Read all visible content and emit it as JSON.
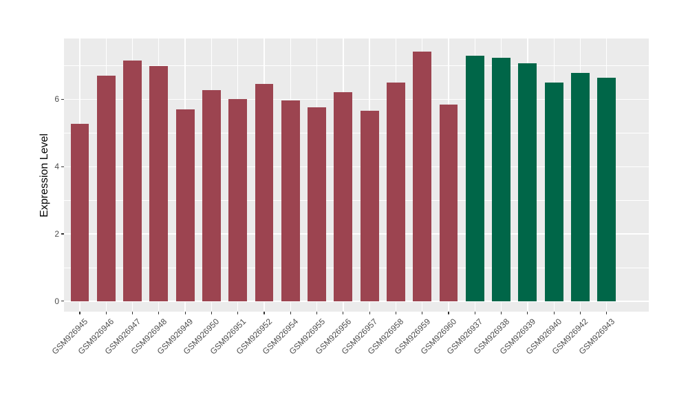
{
  "figure": {
    "background": "#FFFFFF",
    "panel_background": "#EBEBEB",
    "grid_color": "#FFFFFF",
    "tick_color": "#333333",
    "axis_text_color": "#4D4D4D",
    "axis_title_color": "#000000"
  },
  "chart_data": {
    "type": "bar",
    "title": "",
    "xlabel": "",
    "ylabel": "Expression Level",
    "categories": [
      "GSM926945",
      "GSM926946",
      "GSM926947",
      "GSM926948",
      "GSM926949",
      "GSM926950",
      "GSM926951",
      "GSM926952",
      "GSM926954",
      "GSM926955",
      "GSM926956",
      "GSM926957",
      "GSM926958",
      "GSM926959",
      "GSM926960",
      "GSM926937",
      "GSM926938",
      "GSM926939",
      "GSM926940",
      "GSM926942",
      "GSM926943"
    ],
    "values": [
      5.27,
      6.7,
      7.15,
      7.0,
      5.71,
      6.27,
      6.02,
      6.46,
      5.97,
      5.76,
      6.21,
      5.67,
      6.5,
      7.42,
      5.85,
      7.3,
      7.24,
      7.08,
      6.51,
      6.78,
      6.65
    ],
    "bar_colors": [
      "#9C4450",
      "#9C4450",
      "#9C4450",
      "#9C4450",
      "#9C4450",
      "#9C4450",
      "#9C4450",
      "#9C4450",
      "#9C4450",
      "#9C4450",
      "#9C4450",
      "#9C4450",
      "#9C4450",
      "#9C4450",
      "#9C4450",
      "#006648",
      "#006648",
      "#006648",
      "#006648",
      "#006648",
      "#006648"
    ],
    "group_colors": {
      "left_group": "#9C4450",
      "right_group": "#006648"
    },
    "ylim": [
      -0.31,
      7.81
    ],
    "yticks": [
      0,
      2,
      4,
      6
    ],
    "yticks_minor": [
      1,
      3,
      5,
      7
    ],
    "x_label_angle_deg": 45,
    "bar_width_ratio": 0.7,
    "grid": "on",
    "legend": "none"
  }
}
